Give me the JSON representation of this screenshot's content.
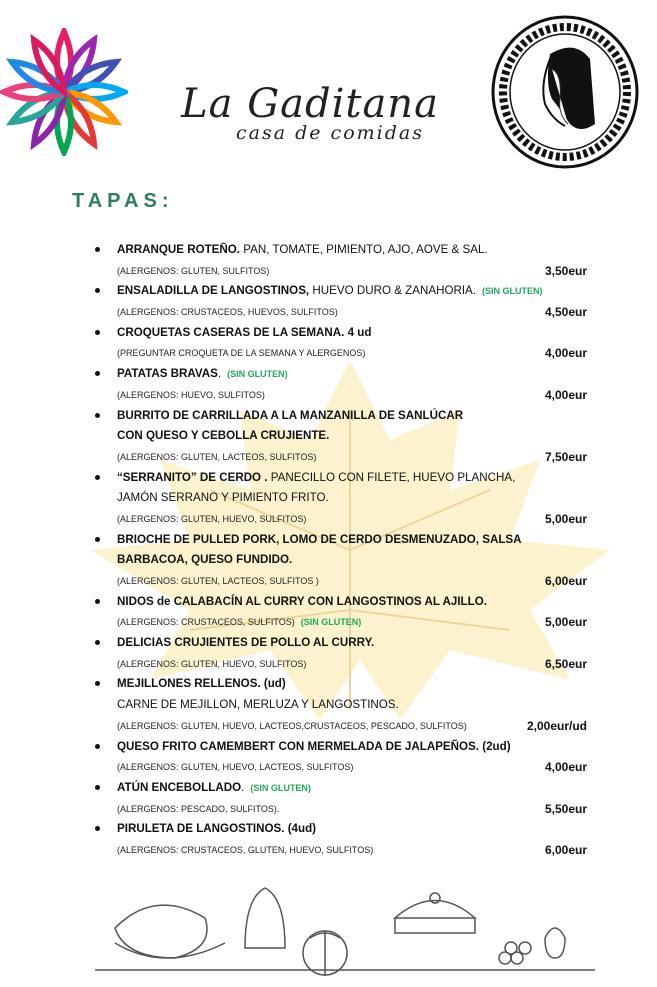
{
  "header": {
    "brand_name": "La Gaditana",
    "brand_subtitle": "casa de comidas",
    "left_logo_icon": "multicolor-flower-logo",
    "right_logo_icon": "cameo-woman-portrait-logo"
  },
  "section_title": "TAPAS:",
  "colors": {
    "section": "#2e7d5b",
    "sin_gluten": "#1faa5a",
    "leaf": "#f9e7a6"
  },
  "items": [
    {
      "lines": [
        {
          "bold": "ARRANQUE ROTEÑO.",
          "normal": " PAN, TOMATE, PIMIENTO, AJO, AOVE & SAL.",
          "tag": ""
        }
      ],
      "allergens": "(ALERGENOS: GLUTEN, SULFITOS)",
      "allergen_tag": "",
      "price": "3,50eur"
    },
    {
      "lines": [
        {
          "bold": "ENSALADILLA DE  LANGOSTINOS,",
          "normal": " HUEVO DURO & ZANAHORIA.",
          "tag": "(SIN GLUTEN)"
        }
      ],
      "allergens": "(ALERGENOS:  CRUSTACEOS, HUEVOS, SULFITOS)",
      "allergen_tag": "",
      "price": "4,50eur"
    },
    {
      "lines": [
        {
          "bold": "CROQUETAS CASERAS DE LA SEMANA. 4 ud",
          "normal": "",
          "tag": ""
        }
      ],
      "allergens": "(PREGUNTAR CROQUETA DE LA SEMANA Y ALERGENOS)",
      "allergen_tag": "",
      "price": "4,00eur"
    },
    {
      "lines": [
        {
          "bold": "PATATAS BRAVAS",
          "normal": ".",
          "tag": "(SIN GLUTEN)"
        }
      ],
      "allergens": "(ALERGENOS: HUEVO, SULFITOS)",
      "allergen_tag": "",
      "price": "4,00eur"
    },
    {
      "lines": [
        {
          "bold": "BURRITO  DE CARRILLADA  A LA MANZANILLA DE SANLÚCAR",
          "normal": "",
          "tag": ""
        },
        {
          "bold": "CON QUESO Y CEBOLLA CRUJIENTE.",
          "normal": "",
          "tag": ""
        }
      ],
      "allergens": " (ALERGENOS: GLUTEN, LACTEOS, SULFITOS)",
      "allergen_tag": "",
      "price": "7,50eur"
    },
    {
      "lines": [
        {
          "bold": "“SERRANITO” DE CERDO .",
          "normal": " PANECILLO CON FILETE, HUEVO PLANCHA,",
          "tag": ""
        },
        {
          "bold": "",
          "normal": "JAMÓN SERRANO Y PIMIENTO FRITO.",
          "tag": ""
        }
      ],
      "allergens": "(ALERGENOS: GLUTEN, HUEVO, SULFITOS)",
      "allergen_tag": "",
      "price": "5,00eur"
    },
    {
      "lines": [
        {
          "bold": "BRIOCHE DE PULLED PORK, LOMO DE CERDO DESMENUZADO, SALSA",
          "normal": "",
          "tag": ""
        },
        {
          "bold": "BARBACOA, QUESO FUNDIDO.",
          "normal": "",
          "tag": ""
        }
      ],
      "allergens": "(ALERGENOS: GLUTEN, LACTEOS, SULFITOS )",
      "allergen_tag": "",
      "price": "6,00eur"
    },
    {
      "lines": [
        {
          "bold": "NIDOS de CALABACÍN AL CURRY CON LANGOSTINOS AL AJILLO.",
          "normal": "",
          "tag": ""
        }
      ],
      "allergens": "(ALERGENOS: CRUSTACEOS, SULFITOS)",
      "allergen_tag": "(SIN GLUTEN)",
      "price": "5,00eur"
    },
    {
      "lines": [
        {
          "bold": "DELICIAS CRUJIENTES DE POLLO AL CURRY.",
          "normal": "",
          "tag": ""
        }
      ],
      "allergens": "(ALERGENOS: GLUTEN, HUEVO, SULFITOS)",
      "allergen_tag": "",
      "price": "6,50eur"
    },
    {
      "lines": [
        {
          "bold": "MEJILLONES RELLENOS. (ud)",
          "normal": "",
          "tag": ""
        },
        {
          "bold": "",
          "normal": "CARNE DE MEJILLON, MERLUZA Y LANGOSTINOS.",
          "tag": ""
        }
      ],
      "allergens": "(ALERGENOS: GLUTEN, HUEVO, LACTEOS,CRUSTACEOS, PESCADO,  SULFITOS)",
      "allergen_tag": "",
      "price": "2,00eur/ud"
    },
    {
      "lines": [
        {
          "bold": "QUESO FRITO CAMEMBERT CON MERMELADA DE JALAPEÑOS. (2ud)",
          "normal": "",
          "tag": ""
        }
      ],
      "allergens": "(ALERGENOS: GLUTEN, HUEVO, LACTEOS, SULFITOS)",
      "allergen_tag": "",
      "price": "4,00eur"
    },
    {
      "lines": [
        {
          "bold": "ATÚN ENCEBOLLADO",
          "normal": ".",
          "tag": "(SIN GLUTEN)"
        }
      ],
      "allergens": "(ALERGENOS: PESCADO, SULFITOS).",
      "allergen_tag": "",
      "price": "5,50eur"
    },
    {
      "lines": [
        {
          "bold": "PIRULETA DE LANGOSTINOS. (4ud)",
          "normal": "",
          "tag": ""
        }
      ],
      "allergens": "(ALERGENOS: CRUSTACEOS, GLUTEN, HUEVO, SULFITOS)",
      "allergen_tag": "",
      "price": "6,00eur"
    }
  ],
  "footer": {
    "illustration_icon": "food-line-art-illustration"
  }
}
